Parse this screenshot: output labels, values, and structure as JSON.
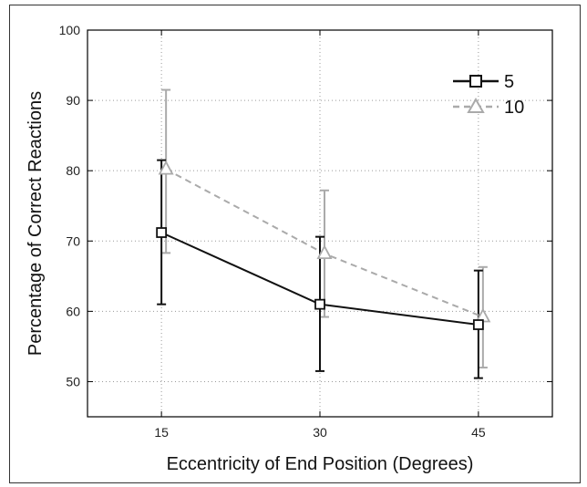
{
  "chart_data": {
    "type": "line",
    "title": "",
    "xlabel": "Eccentricity of End Position (Degrees)",
    "ylabel": "Percentage of Correct Reactions",
    "x": [
      15,
      30,
      45
    ],
    "x_tick_labels": [
      "15",
      "30",
      "45"
    ],
    "xlim": [
      8,
      52
    ],
    "ylim": [
      45,
      100
    ],
    "y_ticks": [
      50,
      60,
      70,
      80,
      90,
      100
    ],
    "y_tick_labels": [
      "50",
      "60",
      "70",
      "80",
      "90",
      "100"
    ],
    "grid": true,
    "legend_position": "top-right",
    "series": [
      {
        "name": "5",
        "values": [
          71.2,
          61.0,
          58.1
        ],
        "err_low": [
          61.0,
          51.5,
          50.5
        ],
        "err_high": [
          81.5,
          70.6,
          65.8
        ],
        "color": "#111111",
        "line_style": "solid",
        "marker": "square"
      },
      {
        "name": "10",
        "values": [
          80.2,
          68.2,
          59.2
        ],
        "err_low": [
          68.3,
          59.2,
          52.0
        ],
        "err_high": [
          91.5,
          77.2,
          66.3
        ],
        "color": "#aaaaaa",
        "line_style": "dashed",
        "marker": "triangle"
      }
    ]
  }
}
